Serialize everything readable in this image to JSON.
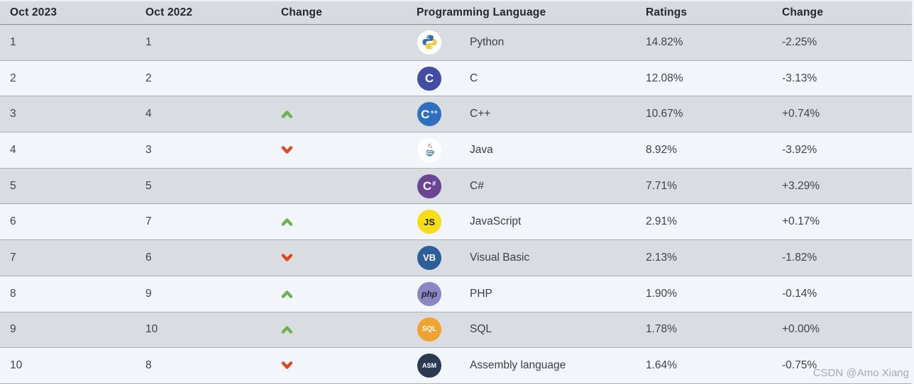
{
  "page": {
    "watermark": "CSDN @Amo Xiang"
  },
  "colors": {
    "header_bg": "#d7dade",
    "row_odd_bg": "#d9dde1",
    "row_even_bg": "#f2f6fa",
    "up_arrow": "#6cb24d",
    "down_arrow": "#e2481e"
  },
  "table": {
    "headers": {
      "rank_current": "Oct 2023",
      "rank_previous": "Oct 2022",
      "rank_change": "Change",
      "language": "Programming Language",
      "ratings": "Ratings",
      "ratings_change": "Change"
    },
    "rows": [
      {
        "rank_2023": "1",
        "rank_2022": "1",
        "change": "none",
        "language": "Python",
        "ratings": "14.82%",
        "ratings_change": "-2.25%",
        "icon": {
          "name": "python-icon",
          "type": "python",
          "bg": "#ffffff"
        }
      },
      {
        "rank_2023": "2",
        "rank_2022": "2",
        "change": "none",
        "language": "C",
        "ratings": "12.08%",
        "ratings_change": "-3.13%",
        "icon": {
          "name": "c-icon",
          "type": "text",
          "label": "C",
          "bg": "#414ea5",
          "fg": "#ffffff",
          "size": 17
        }
      },
      {
        "rank_2023": "3",
        "rank_2022": "4",
        "change": "up",
        "language": "C++",
        "ratings": "10.67%",
        "ratings_change": "+0.74%",
        "icon": {
          "name": "cpp-icon",
          "type": "text",
          "label": "C",
          "sub": "++",
          "bg": "#2e70bf",
          "fg": "#ffffff",
          "size": 17
        }
      },
      {
        "rank_2023": "4",
        "rank_2022": "3",
        "change": "down",
        "language": "Java",
        "ratings": "8.92%",
        "ratings_change": "-3.92%",
        "icon": {
          "name": "java-icon",
          "type": "java",
          "bg": "#ffffff"
        }
      },
      {
        "rank_2023": "5",
        "rank_2022": "5",
        "change": "none",
        "language": "C#",
        "ratings": "7.71%",
        "ratings_change": "+3.29%",
        "icon": {
          "name": "csharp-icon",
          "type": "text",
          "label": "C",
          "sub": "#",
          "bg": "#6a4594",
          "fg": "#ffffff",
          "size": 17
        }
      },
      {
        "rank_2023": "6",
        "rank_2022": "7",
        "change": "up",
        "language": "JavaScript",
        "ratings": "2.91%",
        "ratings_change": "+0.17%",
        "icon": {
          "name": "javascript-icon",
          "type": "text",
          "label": "JS",
          "bg": "#f5de19",
          "fg": "#1c1d20",
          "size": 13
        }
      },
      {
        "rank_2023": "7",
        "rank_2022": "6",
        "change": "down",
        "language": "Visual Basic",
        "ratings": "2.13%",
        "ratings_change": "-1.82%",
        "icon": {
          "name": "visual-basic-icon",
          "type": "text",
          "label": "VB",
          "bg": "#2e5e97",
          "fg": "#ffffff",
          "size": 13
        }
      },
      {
        "rank_2023": "8",
        "rank_2022": "9",
        "change": "up",
        "language": "PHP",
        "ratings": "1.90%",
        "ratings_change": "-0.14%",
        "icon": {
          "name": "php-icon",
          "type": "text",
          "label": "php",
          "bg": "#8a86c2",
          "fg": "#21252d",
          "size": 12,
          "italic": true
        }
      },
      {
        "rank_2023": "9",
        "rank_2022": "10",
        "change": "up",
        "language": "SQL",
        "ratings": "1.78%",
        "ratings_change": "+0.00%",
        "icon": {
          "name": "sql-icon",
          "type": "text",
          "label": "SQL",
          "bg": "#f0a330",
          "fg": "#ffffff",
          "size": 10
        }
      },
      {
        "rank_2023": "10",
        "rank_2022": "8",
        "change": "down",
        "language": "Assembly language",
        "ratings": "1.64%",
        "ratings_change": "-0.75%",
        "icon": {
          "name": "assembly-icon",
          "type": "text",
          "label": "ASM",
          "bg": "#2b3a52",
          "fg": "#ffffff",
          "size": 9
        }
      }
    ]
  }
}
